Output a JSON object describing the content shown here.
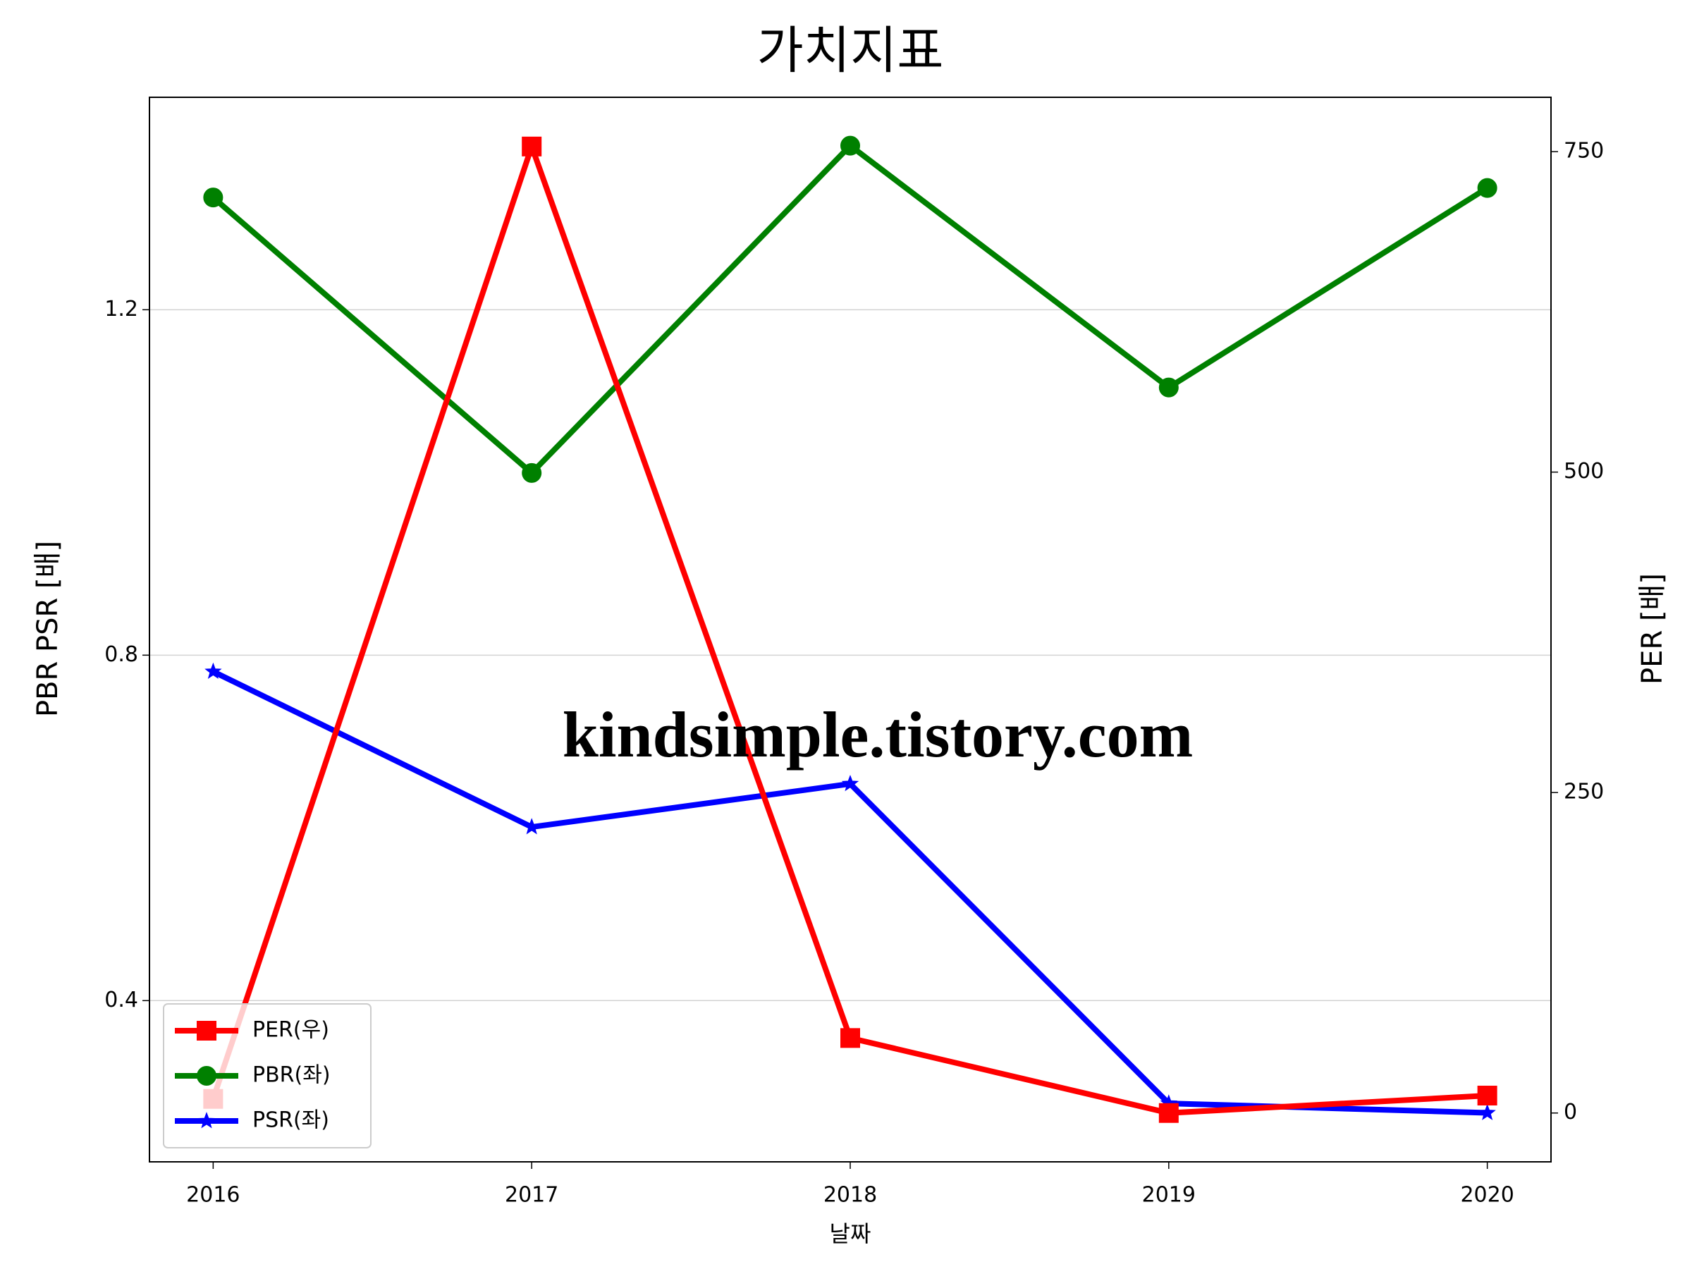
{
  "chart_data": {
    "type": "line",
    "title": "가치지표",
    "x": [
      2016,
      2017,
      2018,
      2019,
      2020
    ],
    "xlim": [
      2015.8,
      2020.2
    ],
    "xticks": [
      2016,
      2017,
      2018,
      2019,
      2020
    ],
    "xlabel": "날짜",
    "ylabel": "PBR PSR [배]",
    "ylabel_color": "#008000",
    "y2label": "PER [배]",
    "y2label_color": "#ff0000",
    "ylim": [
      0.2133,
      1.446
    ],
    "yticks": [
      0.4,
      0.8,
      1.2
    ],
    "y2lim": [
      -38.1,
      792.4
    ],
    "y2ticks": [
      0,
      250,
      500,
      750
    ],
    "grid": true,
    "legend": "lower left",
    "annotation": "kindsimple.tistory.com",
    "series": [
      {
        "name": "PER(우)",
        "color": "#ff0000",
        "marker": "square",
        "axis": "y2",
        "values": [
          11,
          754,
          58.5,
          0,
          13.6
        ]
      },
      {
        "name": "PBR(좌)",
        "color": "#008000",
        "marker": "circle",
        "values": [
          1.33,
          1.011,
          1.39,
          1.11,
          1.341
        ]
      },
      {
        "name": "PSR(좌)",
        "color": "#0000ff",
        "marker": "star",
        "values": [
          0.781,
          0.601,
          0.651,
          0.281,
          0.27
        ]
      }
    ]
  }
}
